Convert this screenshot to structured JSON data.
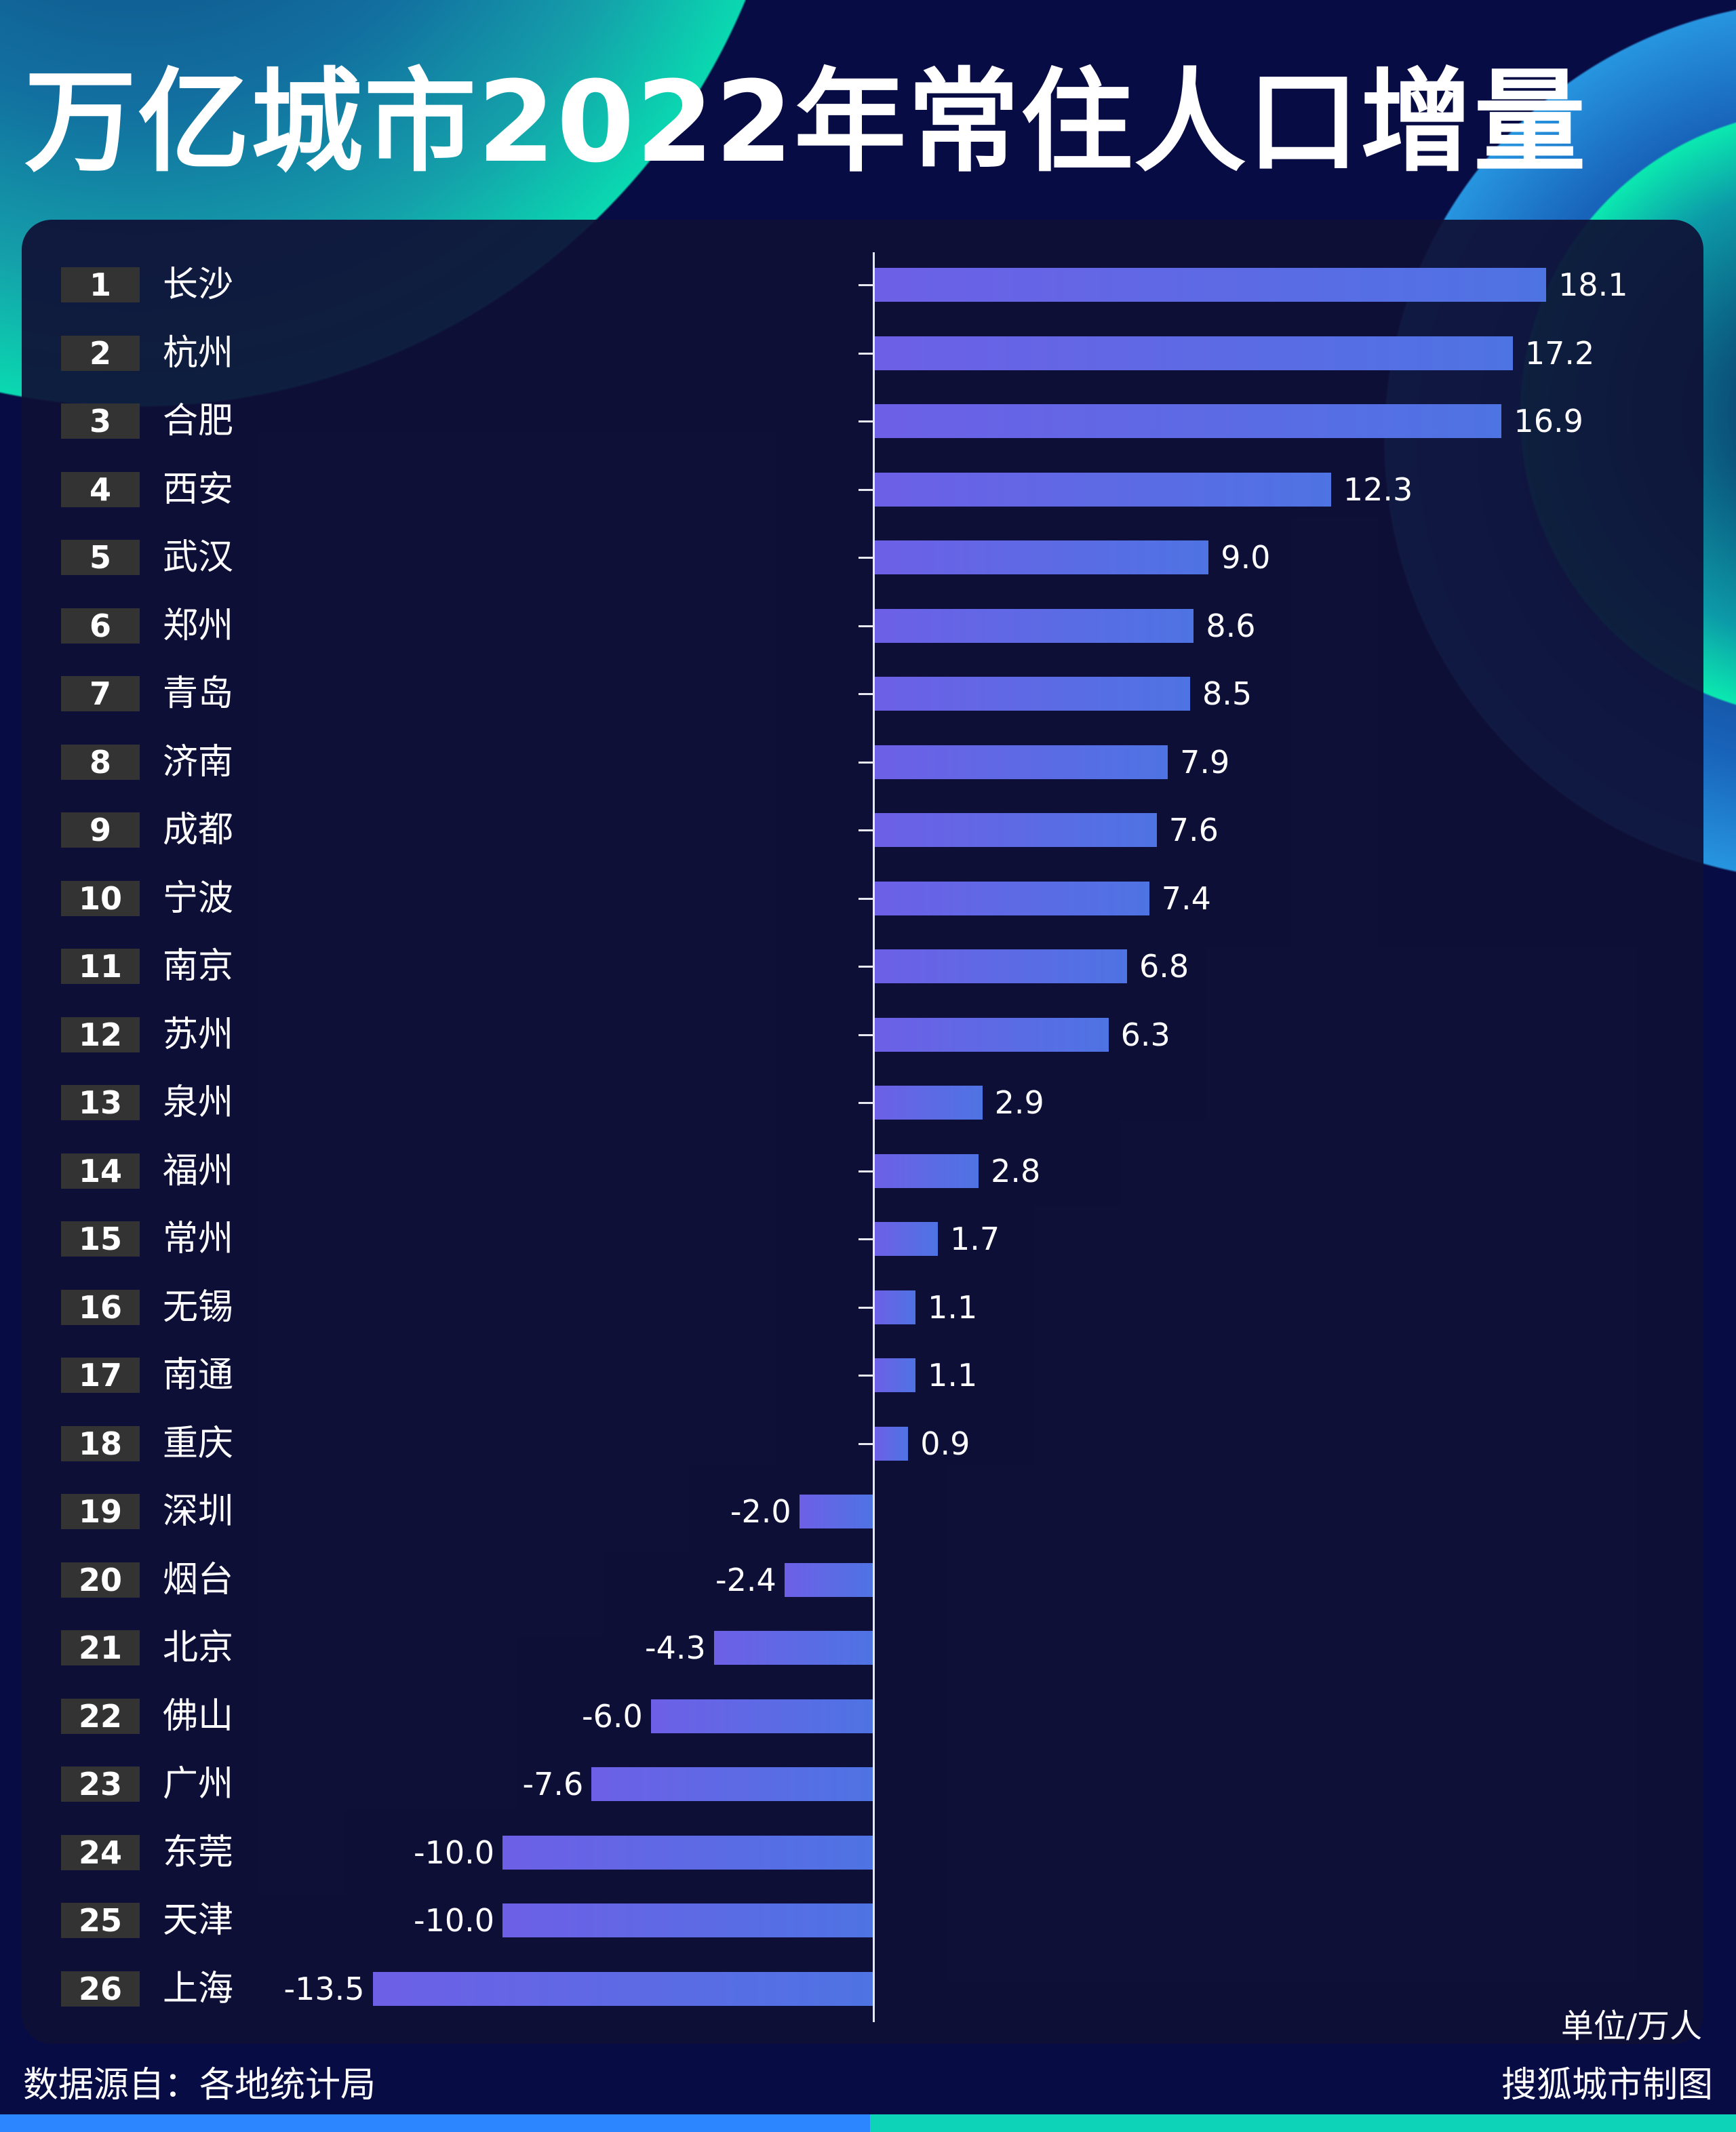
{
  "title": "万亿城市2022年常住人口增量",
  "unit_label": "单位/万人",
  "source": "数据源自：各地统计局",
  "credit": "搜狐城市制图",
  "colors": {
    "background": "#080c45",
    "panel": "#0f1036",
    "bar_start": "#6d60e6",
    "bar_end": "#4e73e3",
    "rank_box": "#333333",
    "footer_left": "#2b86ff",
    "footer_right": "#0dd3b8"
  },
  "chart_data": {
    "type": "bar",
    "orientation": "horizontal",
    "title": "万亿城市2022年常住人口增量",
    "unit": "单位/万人",
    "ranks": [
      "1",
      "2",
      "3",
      "4",
      "5",
      "6",
      "7",
      "8",
      "9",
      "10",
      "11",
      "12",
      "13",
      "14",
      "15",
      "16",
      "17",
      "18",
      "19",
      "20",
      "21",
      "22",
      "23",
      "24",
      "25",
      "26"
    ],
    "categories": [
      "长沙",
      "杭州",
      "合肥",
      "西安",
      "武汉",
      "郑州",
      "青岛",
      "济南",
      "成都",
      "宁波",
      "南京",
      "苏州",
      "泉州",
      "福州",
      "常州",
      "无锡",
      "南通",
      "重庆",
      "深圳",
      "烟台",
      "北京",
      "佛山",
      "广州",
      "东莞",
      "天津",
      "上海"
    ],
    "values": [
      18.1,
      17.2,
      16.9,
      12.3,
      9.0,
      8.6,
      8.5,
      7.9,
      7.6,
      7.4,
      6.8,
      6.3,
      2.9,
      2.8,
      1.7,
      1.1,
      1.1,
      0.9,
      -2.0,
      -2.4,
      -4.3,
      -6.0,
      -7.6,
      -10.0,
      -10.0,
      -13.5
    ],
    "labels": [
      "18.1",
      "17.2",
      "16.9",
      "12.3",
      "9.0",
      "8.6",
      "8.5",
      "7.9",
      "7.6",
      "7.4",
      "6.8",
      "6.3",
      "2.9",
      "2.8",
      "1.7",
      "1.1",
      "1.1",
      "0.9",
      "-2.0",
      "-2.4",
      "-4.3",
      "-6.0",
      "-7.6",
      "-10.0",
      "-10.0",
      "-13.5"
    ],
    "grid": false,
    "legend": "none"
  }
}
